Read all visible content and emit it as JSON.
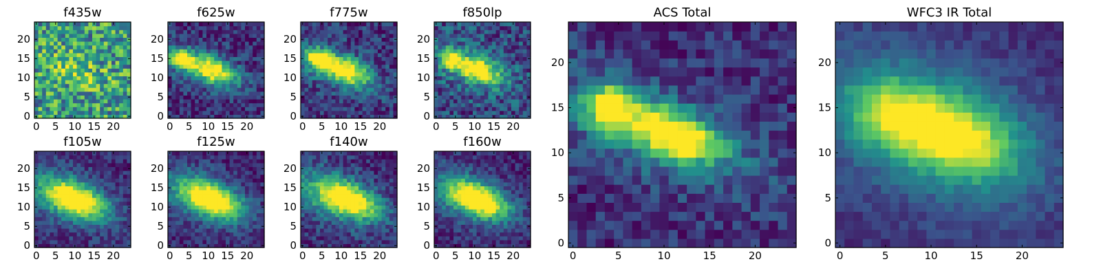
{
  "figure": {
    "colormap": [
      "#440154",
      "#3b528b",
      "#21918c",
      "#5ec962",
      "#fde725"
    ]
  },
  "chart_data": [
    {
      "type": "heatmap",
      "title": "f435w",
      "grid_size": [
        25,
        25
      ],
      "xlim": [
        0,
        24
      ],
      "ylim": [
        0,
        24
      ],
      "xticks": [
        "0",
        "5",
        "10",
        "15",
        "20"
      ],
      "yticks": [
        "0",
        "5",
        "10",
        "15",
        "20"
      ],
      "grid": false,
      "peak": [
        10,
        12
      ],
      "values": "25x25 pixel intensities (image cutout)"
    },
    {
      "type": "heatmap",
      "title": "f625w",
      "grid_size": [
        25,
        25
      ],
      "xlim": [
        0,
        24
      ],
      "ylim": [
        0,
        24
      ],
      "xticks": [
        "0",
        "5",
        "10",
        "15",
        "20"
      ],
      "yticks": [
        "0",
        "5",
        "10",
        "15",
        "20"
      ],
      "grid": false,
      "peak": [
        3,
        15
      ],
      "values": "25x25 pixel intensities (image cutout)"
    },
    {
      "type": "heatmap",
      "title": "f775w",
      "grid_size": [
        25,
        25
      ],
      "xlim": [
        0,
        24
      ],
      "ylim": [
        0,
        24
      ],
      "xticks": [
        "0",
        "5",
        "10",
        "15",
        "20"
      ],
      "yticks": [
        "0",
        "5",
        "10",
        "15",
        "20"
      ],
      "grid": false,
      "peak": [
        4,
        15
      ],
      "values": "25x25 pixel intensities (image cutout)"
    },
    {
      "type": "heatmap",
      "title": "f850lp",
      "grid_size": [
        25,
        25
      ],
      "xlim": [
        0,
        24
      ],
      "ylim": [
        0,
        24
      ],
      "xticks": [
        "0",
        "5",
        "10",
        "15",
        "20"
      ],
      "yticks": [
        "0",
        "5",
        "10",
        "15",
        "20"
      ],
      "grid": false,
      "peak": [
        10,
        12
      ],
      "values": "25x25 pixel intensities (image cutout)"
    },
    {
      "type": "heatmap",
      "title": "f105w",
      "grid_size": [
        25,
        25
      ],
      "xlim": [
        0,
        24
      ],
      "ylim": [
        0,
        24
      ],
      "xticks": [
        "0",
        "5",
        "10",
        "15",
        "20"
      ],
      "yticks": [
        "0",
        "5",
        "10",
        "15",
        "20"
      ],
      "grid": false,
      "peak": [
        11,
        12
      ],
      "values": "25x25 pixel intensities (image cutout)"
    },
    {
      "type": "heatmap",
      "title": "f125w",
      "grid_size": [
        25,
        25
      ],
      "xlim": [
        0,
        24
      ],
      "ylim": [
        0,
        24
      ],
      "xticks": [
        "0",
        "5",
        "10",
        "15",
        "20"
      ],
      "yticks": [
        "0",
        "5",
        "10",
        "15",
        "20"
      ],
      "grid": false,
      "peak": [
        12,
        12
      ],
      "values": "25x25 pixel intensities (image cutout)"
    },
    {
      "type": "heatmap",
      "title": "f140w",
      "grid_size": [
        25,
        25
      ],
      "xlim": [
        0,
        24
      ],
      "ylim": [
        0,
        24
      ],
      "xticks": [
        "0",
        "5",
        "10",
        "15",
        "20"
      ],
      "yticks": [
        "0",
        "5",
        "10",
        "15",
        "20"
      ],
      "grid": false,
      "peak": [
        13,
        12
      ],
      "values": "25x25 pixel intensities (image cutout)"
    },
    {
      "type": "heatmap",
      "title": "f160w",
      "grid_size": [
        25,
        25
      ],
      "xlim": [
        0,
        24
      ],
      "ylim": [
        0,
        24
      ],
      "xticks": [
        "0",
        "5",
        "10",
        "15",
        "20"
      ],
      "yticks": [
        "0",
        "5",
        "10",
        "15",
        "20"
      ],
      "grid": false,
      "peak": [
        11,
        12
      ],
      "values": "25x25 pixel intensities (image cutout)"
    },
    {
      "type": "heatmap",
      "title": "ACS Total",
      "grid_size": [
        25,
        25
      ],
      "xlim": [
        0,
        24
      ],
      "ylim": [
        0,
        24
      ],
      "xticks": [
        "0",
        "5",
        "10",
        "15",
        "20"
      ],
      "yticks": [
        "0",
        "5",
        "10",
        "15",
        "20"
      ],
      "grid": false,
      "peak": [
        4,
        15
      ],
      "secondary_peak": [
        11,
        12
      ],
      "values": "25x25 pixel intensities (image cutout)"
    },
    {
      "type": "heatmap",
      "title": "WFC3 IR Total",
      "grid_size": [
        25,
        25
      ],
      "xlim": [
        0,
        24
      ],
      "ylim": [
        0,
        24
      ],
      "xticks": [
        "0",
        "5",
        "10",
        "15",
        "20"
      ],
      "yticks": [
        "0",
        "5",
        "10",
        "15",
        "20"
      ],
      "grid": false,
      "peak": [
        12,
        12
      ],
      "values": "25x25 pixel intensities (image cutout)"
    }
  ]
}
